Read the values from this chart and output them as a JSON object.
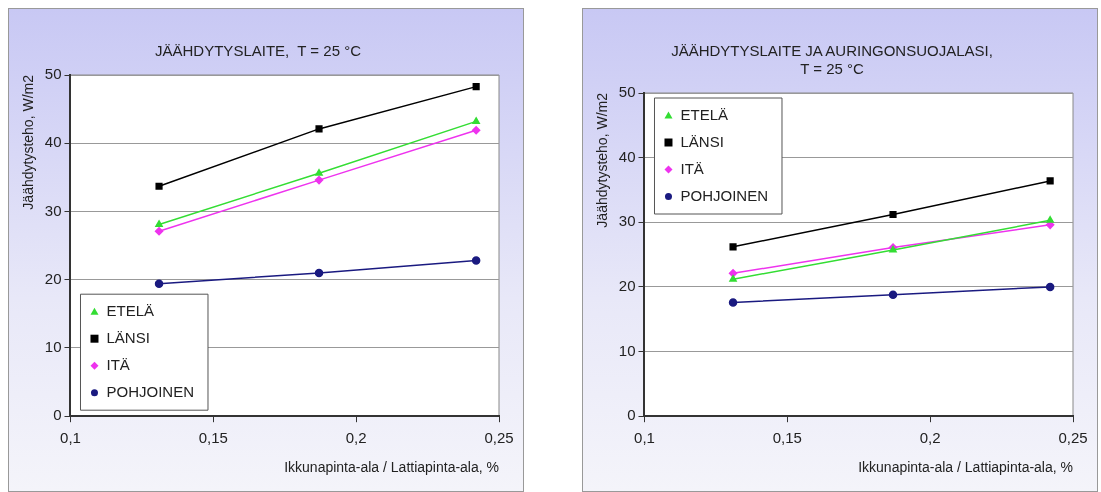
{
  "chart_data": [
    {
      "type": "line",
      "title": "JÄÄHDYTYSLAITE,  T = 25 °C",
      "xlabel": "Ikkunapinta-ala / Lattiapinta-ala, %",
      "ylabel": "Jäähdytysteho, W/m2",
      "x": [
        0.131,
        0.187,
        0.242
      ],
      "series": [
        {
          "name": "ETELÄ",
          "color": "#33dd33",
          "marker": "triangle",
          "values": [
            28.1,
            35.6,
            43.2
          ]
        },
        {
          "name": "LÄNSI",
          "color": "#000000",
          "marker": "square",
          "values": [
            33.7,
            42.1,
            48.3
          ]
        },
        {
          "name": "ITÄ",
          "color": "#ee33ee",
          "marker": "diamond",
          "values": [
            27.1,
            34.6,
            41.9
          ]
        },
        {
          "name": "POHJOINEN",
          "color": "#1a1a80",
          "marker": "circle",
          "values": [
            19.4,
            21.0,
            22.8
          ]
        }
      ],
      "xlim": [
        0.1,
        0.25
      ],
      "xticks": [
        {
          "value": 0.1,
          "label": "0,1"
        },
        {
          "value": 0.15,
          "label": "0,15"
        },
        {
          "value": 0.2,
          "label": "0,2"
        },
        {
          "value": 0.25,
          "label": "0,25"
        }
      ],
      "ylim": [
        0,
        50
      ],
      "yticks": [
        0,
        10,
        20,
        30,
        40,
        50
      ],
      "grid": "y",
      "legend": "bottom left",
      "line_style": "solid"
    },
    {
      "type": "line",
      "title": "JÄÄHDYTYSLAITE JA AURINGONSUOJALASI, T = 25 °C",
      "xlabel": "Ikkunapinta-ala / Lattiapinta-ala, %",
      "ylabel": "Jäähdytysteho, W/m2",
      "x": [
        0.131,
        0.187,
        0.242
      ],
      "series": [
        {
          "name": "ETELÄ",
          "color": "#33dd33",
          "marker": "triangle",
          "values": [
            21.2,
            25.7,
            30.3
          ]
        },
        {
          "name": "LÄNSI",
          "color": "#000000",
          "marker": "square",
          "values": [
            26.2,
            31.2,
            36.4
          ]
        },
        {
          "name": "ITÄ",
          "color": "#ee33ee",
          "marker": "diamond",
          "values": [
            22.1,
            26.1,
            29.6
          ]
        },
        {
          "name": "POHJOINEN",
          "color": "#1a1a80",
          "marker": "circle",
          "values": [
            17.6,
            18.8,
            20.0
          ]
        }
      ],
      "xlim": [
        0.1,
        0.25
      ],
      "xticks": [
        {
          "value": 0.1,
          "label": "0,1"
        },
        {
          "value": 0.15,
          "label": "0,15"
        },
        {
          "value": 0.2,
          "label": "0,2"
        },
        {
          "value": 0.25,
          "label": "0,25"
        }
      ],
      "ylim": [
        0,
        50
      ],
      "yticks": [
        0,
        10,
        20,
        30,
        40,
        50
      ],
      "grid": "y",
      "legend": "top left",
      "line_style": "solid"
    }
  ]
}
